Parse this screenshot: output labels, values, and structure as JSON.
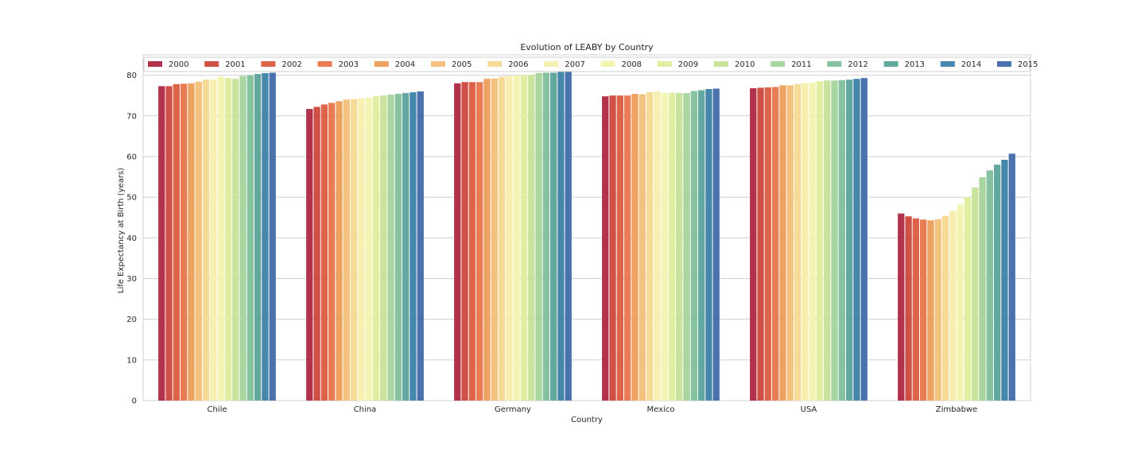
{
  "chart_data": {
    "type": "bar",
    "title": "Evolution of LEABY by Country",
    "xlabel": "Country",
    "ylabel": "Life Expectancy at Birth (years)",
    "ylim": [
      0,
      85
    ],
    "yticks": [
      0,
      10,
      20,
      30,
      40,
      50,
      60,
      70,
      80
    ],
    "grid": true,
    "legend_position": "top",
    "categories": [
      "Chile",
      "China",
      "Germany",
      "Mexico",
      "USA",
      "Zimbabwe"
    ],
    "series": [
      {
        "name": "2000",
        "color": "#b2324c",
        "values": [
          77.3,
          71.7,
          78.0,
          74.8,
          76.8,
          46.0
        ]
      },
      {
        "name": "2001",
        "color": "#cf5046",
        "values": [
          77.3,
          72.2,
          78.3,
          75.0,
          76.9,
          45.3
        ]
      },
      {
        "name": "2002",
        "color": "#dd6449",
        "values": [
          77.8,
          72.8,
          78.3,
          75.0,
          77.0,
          44.8
        ]
      },
      {
        "name": "2003",
        "color": "#e87c55",
        "values": [
          77.9,
          73.2,
          78.3,
          75.0,
          77.1,
          44.5
        ]
      },
      {
        "name": "2004",
        "color": "#eea262",
        "values": [
          78.0,
          73.6,
          79.1,
          75.4,
          77.5,
          44.3
        ]
      },
      {
        "name": "2005",
        "color": "#f2c27e",
        "values": [
          78.4,
          74.0,
          79.2,
          75.3,
          77.5,
          44.6
        ]
      },
      {
        "name": "2006",
        "color": "#f5db97",
        "values": [
          78.9,
          74.1,
          79.6,
          75.8,
          77.8,
          45.4
        ]
      },
      {
        "name": "2007",
        "color": "#f7efb0",
        "values": [
          78.9,
          74.3,
          79.8,
          76.0,
          78.1,
          46.6
        ]
      },
      {
        "name": "2008",
        "color": "#f2f5b2",
        "values": [
          79.6,
          74.5,
          79.9,
          75.6,
          78.2,
          48.2
        ]
      },
      {
        "name": "2009",
        "color": "#e1eda0",
        "values": [
          79.3,
          74.8,
          80.0,
          75.7,
          78.5,
          50.0
        ]
      },
      {
        "name": "2010",
        "color": "#c8e39b",
        "values": [
          79.1,
          75.0,
          80.1,
          75.6,
          78.7,
          52.4
        ]
      },
      {
        "name": "2011",
        "color": "#a9d5a1",
        "values": [
          79.8,
          75.2,
          80.5,
          75.6,
          78.7,
          54.9
        ]
      },
      {
        "name": "2012",
        "color": "#86c2a0",
        "values": [
          80.0,
          75.4,
          80.6,
          76.1,
          78.8,
          56.6
        ]
      },
      {
        "name": "2013",
        "color": "#62a89f",
        "values": [
          80.3,
          75.6,
          80.6,
          76.3,
          78.9,
          58.0
        ]
      },
      {
        "name": "2014",
        "color": "#4588ab",
        "values": [
          80.5,
          75.8,
          81.0,
          76.6,
          79.1,
          59.2
        ]
      },
      {
        "name": "2015",
        "color": "#4a72ad",
        "values": [
          80.6,
          76.0,
          81.0,
          76.7,
          79.3,
          60.7
        ]
      }
    ]
  }
}
